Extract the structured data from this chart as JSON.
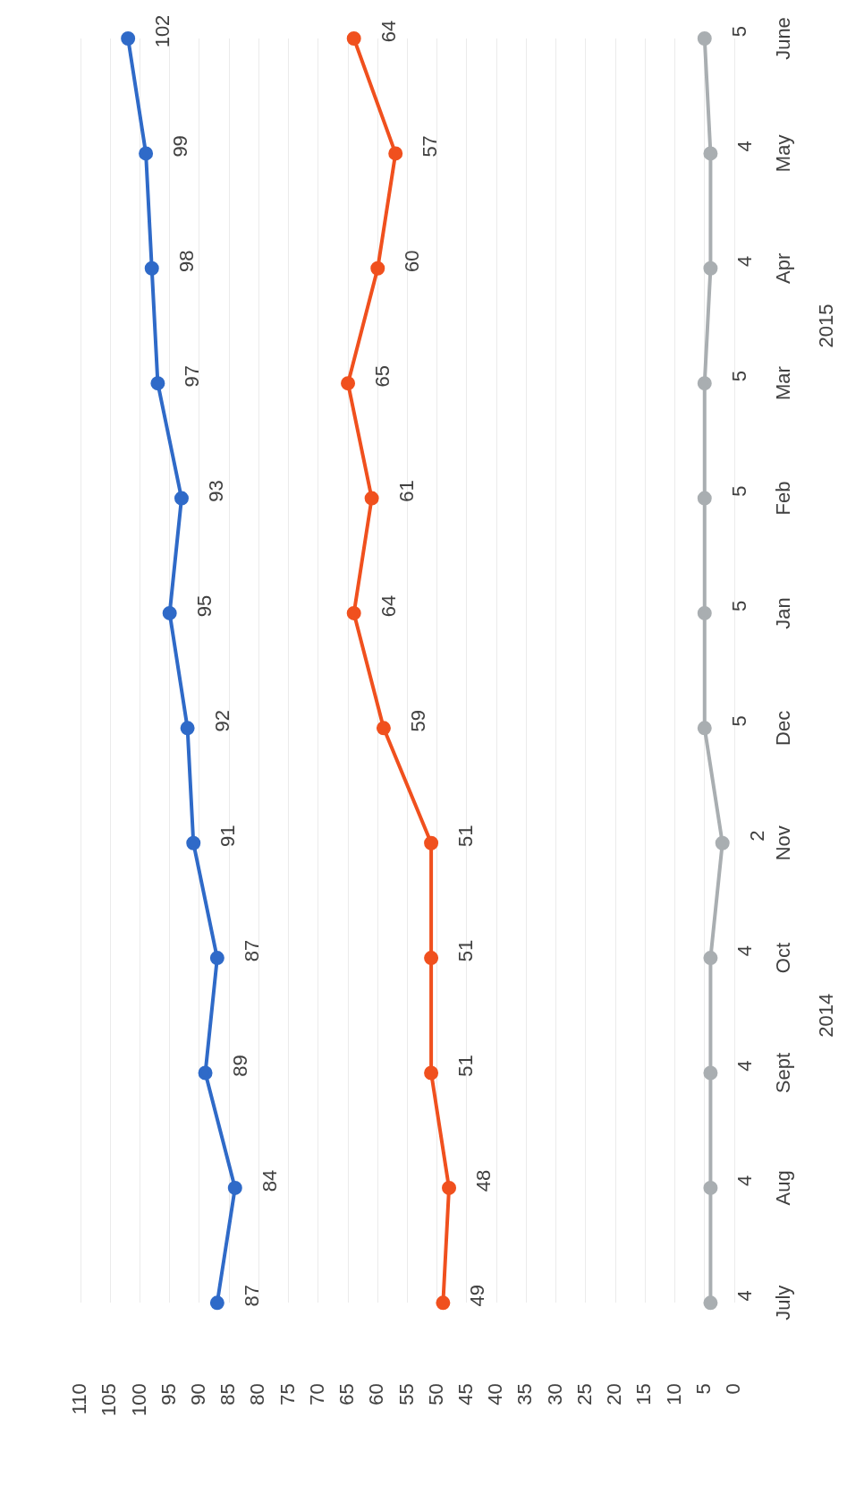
{
  "chart_data": {
    "type": "line",
    "orientation": "horizontal",
    "categories": [
      "June",
      "May",
      "Apr",
      "Mar",
      "Feb",
      "Jan",
      "Dec",
      "Nov",
      "Oct",
      "Sept",
      "Aug",
      "July"
    ],
    "series": [
      {
        "color": "#2f6ac8",
        "values": [
          102,
          99,
          98,
          97,
          93,
          95,
          92,
          91,
          87,
          89,
          84,
          87
        ]
      },
      {
        "color": "#f0501e",
        "values": [
          64,
          57,
          60,
          65,
          61,
          64,
          59,
          51,
          51,
          51,
          48,
          49
        ]
      },
      {
        "color": "#a9aeb1",
        "values": [
          5,
          4,
          4,
          5,
          5,
          5,
          5,
          2,
          4,
          4,
          4,
          4
        ]
      }
    ],
    "xlim": [
      110,
      0
    ],
    "xticks": [
      110,
      105,
      100,
      95,
      90,
      85,
      80,
      75,
      70,
      65,
      60,
      55,
      50,
      45,
      40,
      35,
      30,
      25,
      20,
      15,
      10,
      5,
      0
    ],
    "grid": "x",
    "marker": "circle",
    "line_style": "solid",
    "data_labels": true,
    "annotations": [
      "2015",
      "2014"
    ]
  }
}
